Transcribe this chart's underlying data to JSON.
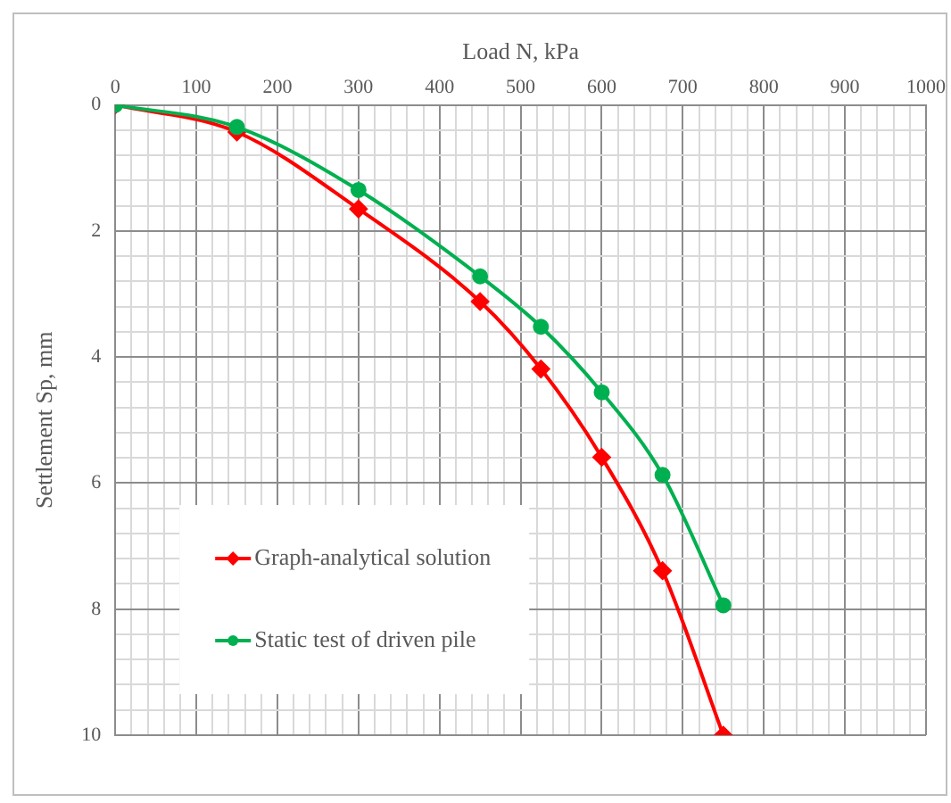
{
  "chart_data": {
    "type": "line",
    "xlabel": "Load N, kPa",
    "ylabel": "Settlement Sp, mm",
    "x": [
      0,
      150,
      300,
      450,
      525,
      600,
      675,
      750
    ],
    "series": [
      {
        "name": "Graph-analytical solution",
        "color": "#ff0000",
        "marker": "diamond",
        "values": [
          0,
          0.43,
          1.65,
          3.12,
          4.19,
          5.59,
          7.39,
          10
        ]
      },
      {
        "name": "Static test of driven pile",
        "color": "#00b050",
        "marker": "circle",
        "values": [
          0,
          0.35,
          1.35,
          2.72,
          3.52,
          4.56,
          5.87,
          7.94
        ]
      }
    ],
    "xlim": [
      0,
      1000
    ],
    "xticks": [
      0,
      {
        "value": 20,
        "label": null
      },
      {
        "value": 40,
        "label": null
      },
      {
        "value": 60,
        "label": null
      },
      {
        "value": 80,
        "label": null
      },
      100,
      {
        "value": 120,
        "label": null
      },
      {
        "value": 140,
        "label": null
      },
      {
        "value": 160,
        "label": null
      },
      {
        "value": 180,
        "label": null
      },
      200,
      {
        "value": 220,
        "label": null
      },
      {
        "value": 240,
        "label": null
      },
      {
        "value": 260,
        "label": null
      },
      {
        "value": 280,
        "label": null
      },
      300,
      {
        "value": 320,
        "label": null
      },
      {
        "value": 340,
        "label": null
      },
      {
        "value": 360,
        "label": null
      },
      {
        "value": 380,
        "label": null
      },
      400,
      {
        "value": 420,
        "label": null
      },
      {
        "value": 440,
        "label": null
      },
      {
        "value": 460,
        "label": null
      },
      {
        "value": 480,
        "label": null
      },
      500,
      {
        "value": 520,
        "label": null
      },
      {
        "value": 540,
        "label": null
      },
      {
        "value": 560,
        "label": null
      },
      {
        "value": 580,
        "label": null
      },
      600,
      {
        "value": 620,
        "label": null
      },
      {
        "value": 640,
        "label": null
      },
      {
        "value": 660,
        "label": null
      },
      {
        "value": 680,
        "label": null
      },
      700,
      {
        "value": 720,
        "label": null
      },
      {
        "value": 740,
        "label": null
      },
      {
        "value": 760,
        "label": null
      },
      {
        "value": 780,
        "label": null
      },
      800,
      {
        "value": 820,
        "label": null
      },
      {
        "value": 840,
        "label": null
      },
      {
        "value": 860,
        "label": null
      },
      {
        "value": 880,
        "label": null
      },
      900,
      {
        "value": 920,
        "label": null
      },
      {
        "value": 940,
        "label": null
      },
      {
        "value": 960,
        "label": null
      },
      {
        "value": 980,
        "label": null
      },
      1000
    ],
    "ylim": [
      10,
      0
    ],
    "yticks": [
      0,
      {
        "value": 0.4,
        "label": null
      },
      {
        "value": 0.8,
        "label": null
      },
      {
        "value": 1.2,
        "label": null
      },
      {
        "value": 1.6,
        "label": null
      },
      2,
      {
        "value": 2.4,
        "label": null
      },
      {
        "value": 2.8,
        "label": null
      },
      {
        "value": 3.2,
        "label": null
      },
      {
        "value": 3.6,
        "label": null
      },
      4,
      {
        "value": 4.4,
        "label": null
      },
      {
        "value": 4.8,
        "label": null
      },
      {
        "value": 5.2,
        "label": null
      },
      {
        "value": 5.6,
        "label": null
      },
      6,
      {
        "value": 6.4,
        "label": null
      },
      {
        "value": 6.8,
        "label": null
      },
      {
        "value": 7.2,
        "label": null
      },
      {
        "value": 7.6,
        "label": null
      },
      8,
      {
        "value": 8.4,
        "label": null
      },
      {
        "value": 8.8,
        "label": null
      },
      {
        "value": 9.2,
        "label": null
      },
      {
        "value": 9.6,
        "label": null
      },
      10
    ],
    "grid": true,
    "legend": "bottom left",
    "line_style": "solid"
  }
}
